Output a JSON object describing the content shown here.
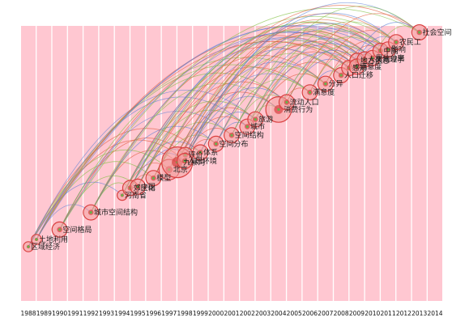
{
  "colors": {
    "background": "#ffffff",
    "stripe": "#ffc7d1",
    "node_ring": "#d94040",
    "node_core": "#f4a0a0",
    "node_center": "#6ab04c",
    "link_red": "#e05a3a",
    "link_green": "#7fbf3f",
    "link_blue": "#5a7fd6"
  },
  "years": [
    "1988",
    "1989",
    "1990",
    "1991",
    "1992",
    "1993",
    "1994",
    "1995",
    "1996",
    "1997",
    "1998",
    "1999",
    "2000",
    "2001",
    "2002",
    "2003",
    "2004",
    "2005",
    "2006",
    "2007",
    "2008",
    "2009",
    "2010",
    "2011",
    "2012",
    "2013",
    "2014"
  ],
  "keywords": [
    {
      "label": "区域经济",
      "year": "1988",
      "weight": 1
    },
    {
      "label": "土地利用",
      "year": "1988",
      "weight": 1
    },
    {
      "label": "空间格局",
      "year": "1990",
      "weight": 2
    },
    {
      "label": "城市空间结构",
      "year": "1992",
      "weight": 2
    },
    {
      "label": "河南省",
      "year": "1994",
      "weight": 1
    },
    {
      "label": "郊区化",
      "year": "1994",
      "weight": 2
    },
    {
      "label": "中国",
      "year": "1995",
      "weight": 2
    },
    {
      "label": "模型",
      "year": "1996",
      "weight": 2
    },
    {
      "label": "北京",
      "year": "1997",
      "weight": 3
    },
    {
      "label": "九寨沟",
      "year": "1997",
      "weight": 5
    },
    {
      "label": "评价",
      "year": "1997",
      "weight": 2
    },
    {
      "label": "人居环境",
      "year": "1998",
      "weight": 2
    },
    {
      "label": "体系",
      "year": "1999",
      "weight": 2
    },
    {
      "label": "空间分布",
      "year": "2000",
      "weight": 2
    },
    {
      "label": "空间结构",
      "year": "2001",
      "weight": 2
    },
    {
      "label": "城市",
      "year": "2002",
      "weight": 2
    },
    {
      "label": "旅游",
      "year": "2002",
      "weight": 2
    },
    {
      "label": "消费行为",
      "year": "2004",
      "weight": 4
    },
    {
      "label": "流动人口",
      "year": "2004",
      "weight": 2
    },
    {
      "label": "满意度",
      "year": "2006",
      "weight": 2
    },
    {
      "label": "分异",
      "year": "2007",
      "weight": 2
    },
    {
      "label": "人口迁移",
      "year": "2008",
      "weight": 2
    },
    {
      "label": "感知",
      "year": "2008",
      "weight": 2
    },
    {
      "label": "地方依恋",
      "year": "2008",
      "weight": 2
    },
    {
      "label": "满意度",
      "year": "2009",
      "weight": 2
    },
    {
      "label": "人文地理学",
      "year": "2009",
      "weight": 2
    },
    {
      "label": "居住分离",
      "year": "2010",
      "weight": 2
    },
    {
      "label": "中国",
      "year": "2010",
      "weight": 2
    },
    {
      "label": "影响",
      "year": "2011",
      "weight": 2
    },
    {
      "label": "农民工",
      "year": "2011",
      "weight": 2
    },
    {
      "label": "社会空间",
      "year": "2013",
      "weight": 2
    }
  ]
}
